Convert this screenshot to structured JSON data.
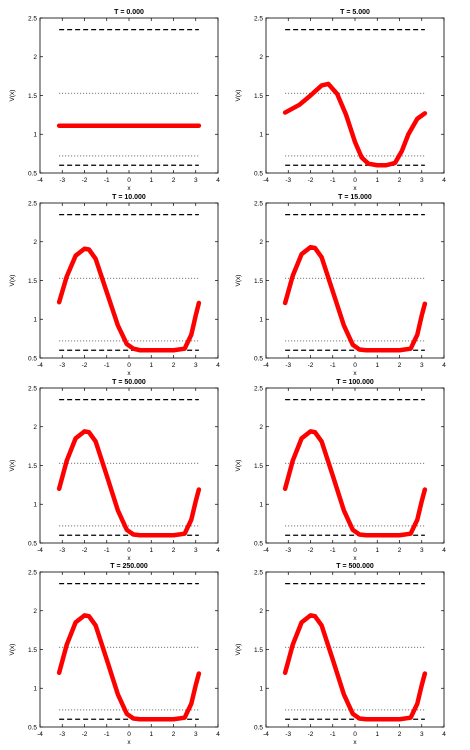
{
  "chart_data": [
    {
      "type": "line",
      "title": "T = 0.000",
      "xlabel": "x",
      "ylabel": "V(x)",
      "xlim": [
        -4,
        4
      ],
      "ylim": [
        0.5,
        2.5
      ],
      "xticks": [
        "-4",
        "-3",
        "-2",
        "-1",
        "0",
        "1",
        "2",
        "3",
        "4"
      ],
      "yticks": [
        "0.5",
        "1",
        "1.5",
        "2",
        "2.5"
      ],
      "grid": false,
      "ref_lines": [
        {
          "style": "dashed",
          "y": 2.35
        },
        {
          "style": "dotted",
          "y": 1.53
        },
        {
          "style": "dotted",
          "y": 0.72
        },
        {
          "style": "dashed",
          "y": 0.6
        }
      ],
      "series": [
        {
          "color": "#ff0000",
          "x": [
            -3.14,
            3.14
          ],
          "y": [
            1.11,
            1.11
          ]
        }
      ]
    },
    {
      "type": "line",
      "title": "T = 5.000",
      "xlabel": "x",
      "ylabel": "V(x)",
      "xlim": [
        -4,
        4
      ],
      "ylim": [
        0.5,
        2.5
      ],
      "xticks": [
        "-4",
        "-3",
        "-2",
        "-1",
        "0",
        "1",
        "2",
        "3",
        "4"
      ],
      "yticks": [
        "0.5",
        "1",
        "1.5",
        "2",
        "2.5"
      ],
      "grid": false,
      "ref_lines": [
        {
          "style": "dashed",
          "y": 2.35
        },
        {
          "style": "dotted",
          "y": 1.53
        },
        {
          "style": "dotted",
          "y": 0.72
        },
        {
          "style": "dashed",
          "y": 0.6
        }
      ],
      "series": [
        {
          "color": "#ff0000",
          "x": [
            -3.14,
            -2.5,
            -2.0,
            -1.5,
            -1.2,
            -0.8,
            -0.4,
            0,
            0.3,
            0.6,
            1.0,
            1.4,
            1.8,
            2.1,
            2.4,
            2.8,
            3.14
          ],
          "y": [
            1.28,
            1.38,
            1.5,
            1.63,
            1.65,
            1.52,
            1.25,
            0.9,
            0.7,
            0.62,
            0.6,
            0.6,
            0.63,
            0.78,
            1.0,
            1.2,
            1.27
          ]
        }
      ]
    },
    {
      "type": "line",
      "title": "T = 10.000",
      "xlabel": "x",
      "ylabel": "V(x)",
      "xlim": [
        -4,
        4
      ],
      "ylim": [
        0.5,
        2.5
      ],
      "xticks": [
        "-4",
        "-3",
        "-2",
        "-1",
        "0",
        "1",
        "2",
        "3",
        "4"
      ],
      "yticks": [
        "0.5",
        "1",
        "1.5",
        "2",
        "2.5"
      ],
      "grid": false,
      "ref_lines": [
        {
          "style": "dashed",
          "y": 2.35
        },
        {
          "style": "dotted",
          "y": 1.53
        },
        {
          "style": "dotted",
          "y": 0.72
        },
        {
          "style": "dashed",
          "y": 0.6
        }
      ],
      "series": [
        {
          "color": "#ff0000",
          "x": [
            -3.14,
            -2.8,
            -2.4,
            -2.0,
            -1.8,
            -1.5,
            -1.0,
            -0.5,
            -0.1,
            0.2,
            0.5,
            1.0,
            1.5,
            2.0,
            2.5,
            2.8,
            3.0,
            3.14
          ],
          "y": [
            1.22,
            1.55,
            1.82,
            1.91,
            1.9,
            1.78,
            1.35,
            0.92,
            0.68,
            0.62,
            0.6,
            0.6,
            0.6,
            0.6,
            0.62,
            0.8,
            1.05,
            1.21
          ]
        }
      ]
    },
    {
      "type": "line",
      "title": "T = 15.000",
      "xlabel": "x",
      "ylabel": "V(x)",
      "xlim": [
        -4,
        4
      ],
      "ylim": [
        0.5,
        2.5
      ],
      "xticks": [
        "-4",
        "-3",
        "-2",
        "-1",
        "0",
        "1",
        "2",
        "3",
        "4"
      ],
      "yticks": [
        "0.5",
        "1",
        "1.5",
        "2",
        "2.5"
      ],
      "grid": false,
      "ref_lines": [
        {
          "style": "dashed",
          "y": 2.35
        },
        {
          "style": "dotted",
          "y": 1.53
        },
        {
          "style": "dotted",
          "y": 0.72
        },
        {
          "style": "dashed",
          "y": 0.6
        }
      ],
      "series": [
        {
          "color": "#ff0000",
          "x": [
            -3.14,
            -2.8,
            -2.4,
            -2.0,
            -1.8,
            -1.5,
            -1.0,
            -0.5,
            -0.1,
            0.2,
            0.5,
            1.0,
            1.5,
            2.0,
            2.5,
            2.8,
            3.0,
            3.14
          ],
          "y": [
            1.21,
            1.56,
            1.84,
            1.93,
            1.92,
            1.8,
            1.36,
            0.92,
            0.67,
            0.61,
            0.6,
            0.6,
            0.6,
            0.6,
            0.62,
            0.8,
            1.05,
            1.2
          ]
        }
      ]
    },
    {
      "type": "line",
      "title": "T = 50.000",
      "xlabel": "x",
      "ylabel": "V(x)",
      "xlim": [
        -4,
        4
      ],
      "ylim": [
        0.5,
        2.5
      ],
      "xticks": [
        "-4",
        "-3",
        "-2",
        "-1",
        "0",
        "1",
        "2",
        "3",
        "4"
      ],
      "yticks": [
        "0.5",
        "1",
        "1.5",
        "2",
        "2.5"
      ],
      "grid": false,
      "ref_lines": [
        {
          "style": "dashed",
          "y": 2.35
        },
        {
          "style": "dotted",
          "y": 1.53
        },
        {
          "style": "dotted",
          "y": 0.72
        },
        {
          "style": "dashed",
          "y": 0.6
        }
      ],
      "series": [
        {
          "color": "#ff0000",
          "x": [
            -3.14,
            -2.8,
            -2.4,
            -2.0,
            -1.8,
            -1.5,
            -1.0,
            -0.5,
            -0.1,
            0.2,
            0.5,
            1.0,
            1.5,
            2.0,
            2.5,
            2.8,
            3.0,
            3.14
          ],
          "y": [
            1.2,
            1.56,
            1.85,
            1.94,
            1.93,
            1.81,
            1.37,
            0.92,
            0.67,
            0.61,
            0.6,
            0.6,
            0.6,
            0.6,
            0.62,
            0.8,
            1.04,
            1.19
          ]
        }
      ]
    },
    {
      "type": "line",
      "title": "T = 100.000",
      "xlabel": "x",
      "ylabel": "V(x)",
      "xlim": [
        -4,
        4
      ],
      "ylim": [
        0.5,
        2.5
      ],
      "xticks": [
        "-4",
        "-3",
        "-2",
        "-1",
        "0",
        "1",
        "2",
        "3",
        "4"
      ],
      "yticks": [
        "0.5",
        "1",
        "1.5",
        "2",
        "2.5"
      ],
      "grid": false,
      "ref_lines": [
        {
          "style": "dashed",
          "y": 2.35
        },
        {
          "style": "dotted",
          "y": 1.53
        },
        {
          "style": "dotted",
          "y": 0.72
        },
        {
          "style": "dashed",
          "y": 0.6
        }
      ],
      "series": [
        {
          "color": "#ff0000",
          "x": [
            -3.14,
            -2.8,
            -2.4,
            -2.0,
            -1.8,
            -1.5,
            -1.0,
            -0.5,
            -0.1,
            0.2,
            0.5,
            1.0,
            1.5,
            2.0,
            2.5,
            2.8,
            3.0,
            3.14
          ],
          "y": [
            1.2,
            1.56,
            1.85,
            1.94,
            1.93,
            1.81,
            1.37,
            0.92,
            0.67,
            0.61,
            0.6,
            0.6,
            0.6,
            0.6,
            0.62,
            0.8,
            1.04,
            1.19
          ]
        }
      ]
    },
    {
      "type": "line",
      "title": "T = 250.000",
      "xlabel": "x",
      "ylabel": "V(x)",
      "xlim": [
        -4,
        4
      ],
      "ylim": [
        0.5,
        2.5
      ],
      "xticks": [
        "-4",
        "-3",
        "-2",
        "-1",
        "0",
        "1",
        "2",
        "3",
        "4"
      ],
      "yticks": [
        "0.5",
        "1",
        "1.5",
        "2",
        "2.5"
      ],
      "grid": false,
      "ref_lines": [
        {
          "style": "dashed",
          "y": 2.35
        },
        {
          "style": "dotted",
          "y": 1.53
        },
        {
          "style": "dotted",
          "y": 0.72
        },
        {
          "style": "dashed",
          "y": 0.6
        }
      ],
      "series": [
        {
          "color": "#ff0000",
          "x": [
            -3.14,
            -2.8,
            -2.4,
            -2.0,
            -1.8,
            -1.5,
            -1.0,
            -0.5,
            -0.1,
            0.2,
            0.5,
            1.0,
            1.5,
            2.0,
            2.5,
            2.8,
            3.0,
            3.14
          ],
          "y": [
            1.2,
            1.56,
            1.85,
            1.94,
            1.93,
            1.81,
            1.37,
            0.92,
            0.67,
            0.61,
            0.6,
            0.6,
            0.6,
            0.6,
            0.62,
            0.8,
            1.04,
            1.19
          ]
        }
      ]
    },
    {
      "type": "line",
      "title": "T = 500.000",
      "xlabel": "x",
      "ylabel": "V(x)",
      "xlim": [
        -4,
        4
      ],
      "ylim": [
        0.5,
        2.5
      ],
      "xticks": [
        "-4",
        "-3",
        "-2",
        "-1",
        "0",
        "1",
        "2",
        "3",
        "4"
      ],
      "yticks": [
        "0.5",
        "1",
        "1.5",
        "2",
        "2.5"
      ],
      "grid": false,
      "ref_lines": [
        {
          "style": "dashed",
          "y": 2.35
        },
        {
          "style": "dotted",
          "y": 1.53
        },
        {
          "style": "dotted",
          "y": 0.72
        },
        {
          "style": "dashed",
          "y": 0.6
        }
      ],
      "series": [
        {
          "color": "#ff0000",
          "x": [
            -3.14,
            -2.8,
            -2.4,
            -2.0,
            -1.8,
            -1.5,
            -1.0,
            -0.5,
            -0.1,
            0.2,
            0.5,
            1.0,
            1.5,
            2.0,
            2.5,
            2.8,
            3.0,
            3.14
          ],
          "y": [
            1.2,
            1.56,
            1.85,
            1.94,
            1.93,
            1.81,
            1.37,
            0.92,
            0.67,
            0.61,
            0.6,
            0.6,
            0.6,
            0.6,
            0.62,
            0.8,
            1.04,
            1.19
          ]
        }
      ]
    }
  ]
}
